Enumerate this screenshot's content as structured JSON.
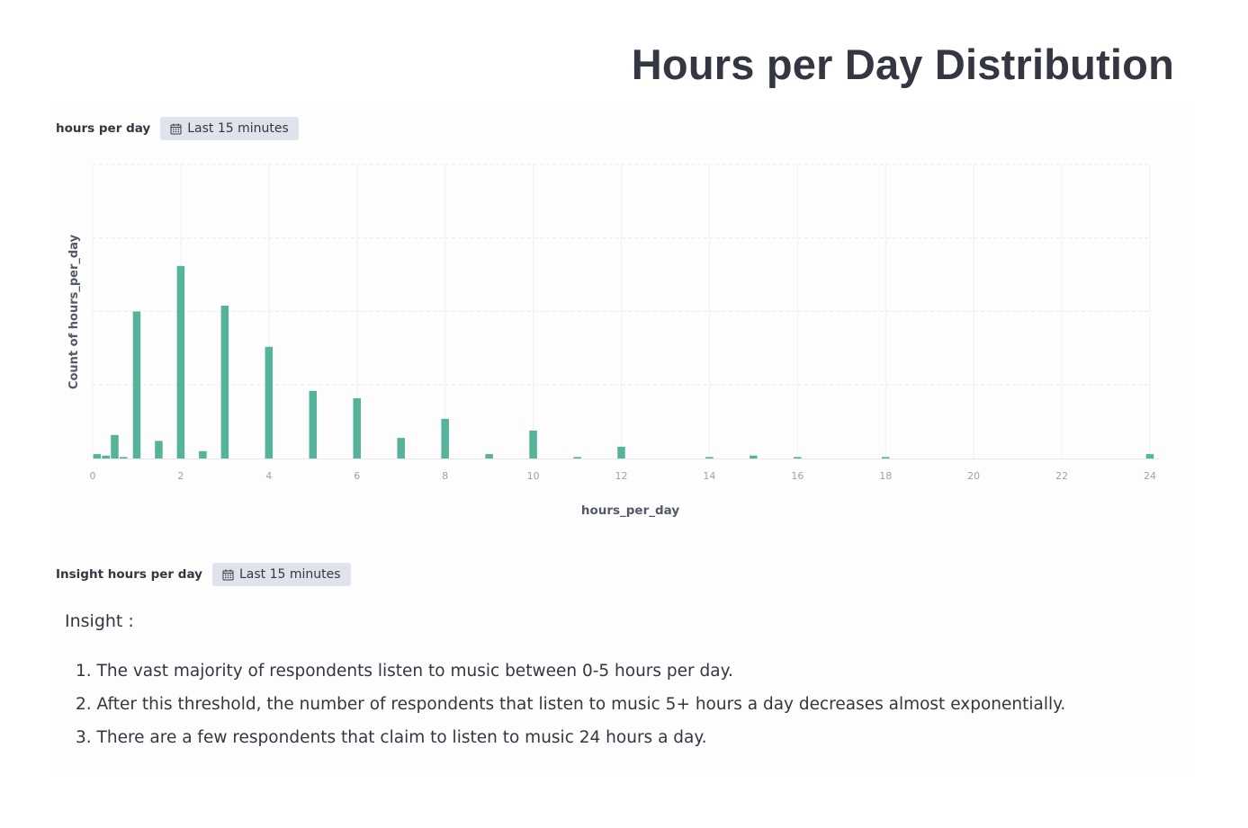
{
  "page": {
    "title": "Hours per Day Distribution"
  },
  "chart_panel": {
    "title": "hours per day",
    "time_range": "Last 15 minutes"
  },
  "insight_panel": {
    "title": "Insight hours per day",
    "time_range": "Last 15 minutes",
    "heading": "Insight :",
    "items": [
      {
        "number": "1.",
        "text": "The vast majority of respondents listen to music between 0-5 hours per day."
      },
      {
        "number": "2.",
        "text": "After this threshold, the number of respondents that listen to music 5+ hours a day decreases almost exponentially."
      },
      {
        "number": "3.",
        "text": "There are a few respondents that claim to listen to music 24 hours a day."
      }
    ]
  },
  "icons": {
    "time_badge": "calendar-icon"
  },
  "colors": {
    "bar": "#54b399",
    "text": "#343741",
    "badge_bg": "#dee3ec"
  },
  "chart_data": {
    "type": "bar",
    "xlabel": "hours_per_day",
    "ylabel": "Count of hours_per_day",
    "xlim": [
      0,
      24
    ],
    "ylim": [
      0,
      2
    ],
    "x_ticks": [
      "0",
      "2",
      "4",
      "6",
      "8",
      "10",
      "12",
      "14",
      "16",
      "18",
      "20",
      "22",
      "24"
    ],
    "y_tick_labels_visible": false,
    "grid": true,
    "x": [
      0.1,
      0.3,
      0.5,
      0.7,
      1,
      1.5,
      2,
      2.5,
      3,
      4,
      5,
      6,
      7,
      8,
      9,
      10,
      11,
      12,
      14,
      15,
      16,
      18,
      24
    ],
    "values": [
      0.03,
      0.02,
      0.16,
      0.01,
      1.0,
      0.12,
      1.31,
      0.05,
      1.04,
      0.76,
      0.46,
      0.41,
      0.14,
      0.27,
      0.03,
      0.19,
      0.01,
      0.08,
      0.01,
      0.02,
      0.01,
      0.01,
      0.03
    ]
  }
}
